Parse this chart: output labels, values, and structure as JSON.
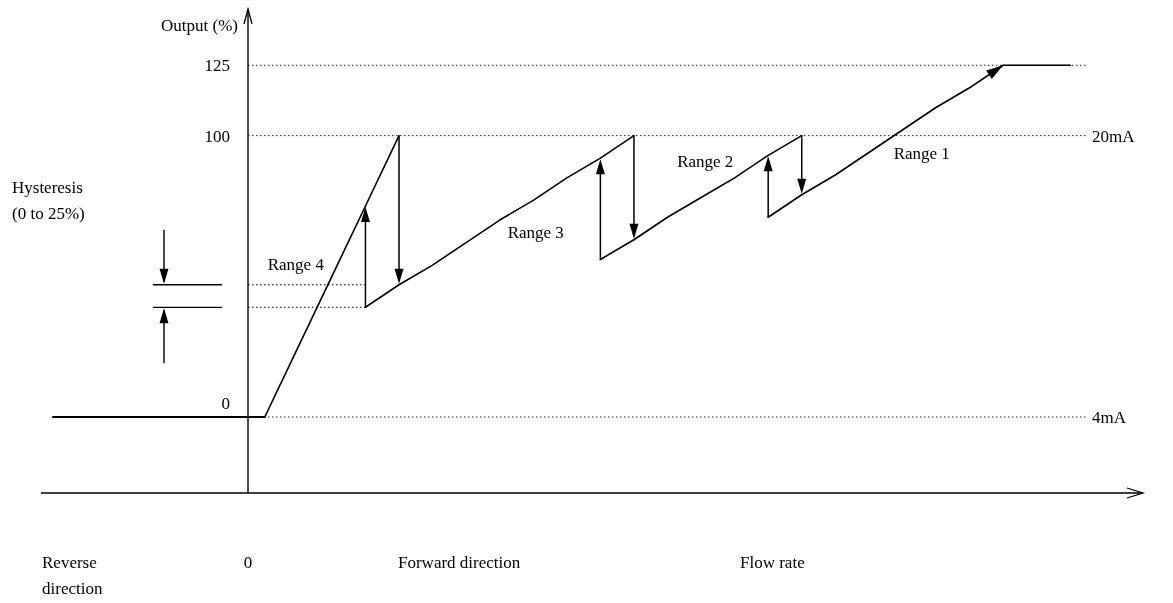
{
  "chart_data": {
    "type": "line",
    "ylabel": "Output (%)",
    "xlabel": "Flow rate",
    "annotations": [
      "Hysteresis (0 to 25%)",
      "Reverse direction",
      "0",
      "Forward direction"
    ],
    "categories": [
      null,
      null,
      null,
      null,
      null,
      null,
      null,
      null,
      null,
      null,
      null,
      null,
      null,
      null,
      null,
      null,
      null,
      null,
      null,
      null,
      null,
      null,
      null,
      null,
      null
    ],
    "series": [
      {
        "name": "Range 4",
        "color": "#000000",
        "values": [
          0,
          25,
          50,
          75,
          100,
          null,
          null,
          null,
          null,
          null,
          null,
          null,
          null,
          null,
          null,
          null,
          null,
          null,
          null,
          null,
          null,
          null,
          null,
          null,
          null
        ]
      },
      {
        "name": "Range 3",
        "color": "#000000",
        "values": [
          null,
          null,
          null,
          39,
          47,
          54,
          62,
          70,
          77,
          85,
          92,
          100,
          null,
          null,
          null,
          null,
          null,
          null,
          null,
          null,
          null,
          null,
          null,
          null,
          null
        ]
      },
      {
        "name": "Range 2",
        "color": "#000000",
        "values": [
          null,
          null,
          null,
          null,
          null,
          null,
          null,
          null,
          null,
          null,
          56,
          63,
          71,
          78,
          85,
          93,
          100,
          null,
          null,
          null,
          null,
          null,
          null,
          null,
          null
        ]
      },
      {
        "name": "Range 1",
        "color": "#000000",
        "values": [
          null,
          null,
          null,
          null,
          null,
          null,
          null,
          null,
          null,
          null,
          null,
          null,
          null,
          null,
          null,
          71,
          79,
          86,
          94,
          102,
          110,
          117,
          125,
          125,
          125
        ]
      }
    ],
    "ylim": [
      -27,
      145
    ],
    "yticks": [
      0,
      100,
      125
    ],
    "y2lim": [
      -0.32,
      27.2
    ],
    "y2ticks": [
      {
        "value": 4,
        "label": "4mA"
      },
      {
        "value": 20,
        "label": "20mA"
      }
    ],
    "ref_lines": [
      {
        "axis": "y",
        "value": 47,
        "line_style": "dotted",
        "color": "#000000"
      },
      {
        "axis": "y",
        "value": 39,
        "line_style": "dotted",
        "color": "#000000"
      }
    ],
    "grid": "y"
  }
}
